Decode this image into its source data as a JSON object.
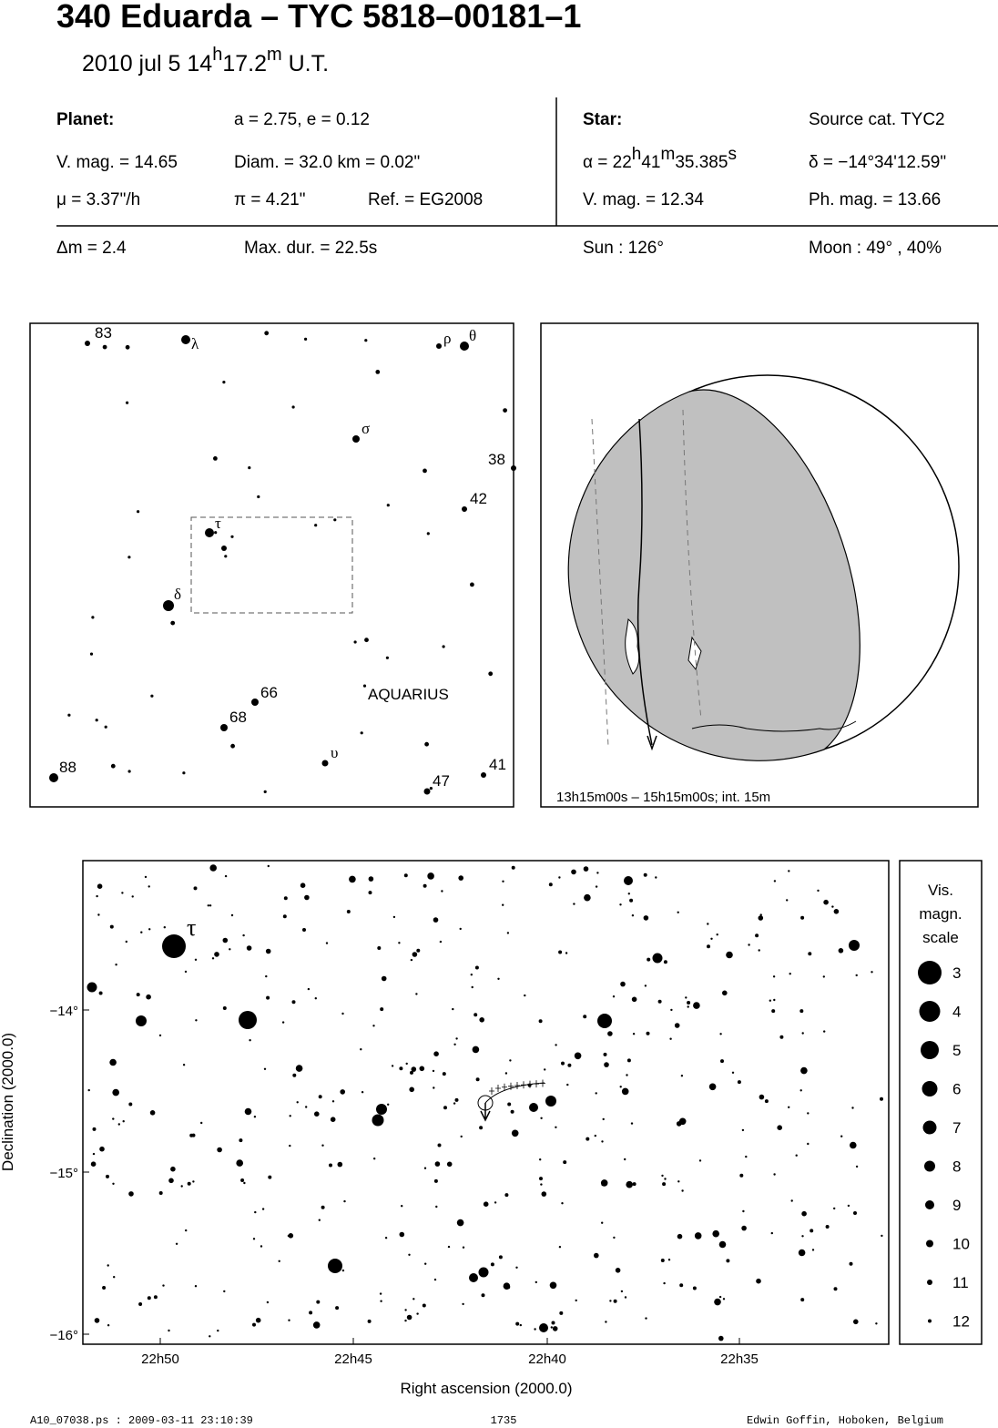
{
  "header": {
    "title": "340 Eduarda  –  TYC 5818–00181–1",
    "date": {
      "day": "2010 jul  5  14",
      "h": "h",
      "min": "17.2",
      "m": "m",
      "tail": " U.T."
    }
  },
  "info": {
    "planet_heading": "Planet:",
    "orbit": "a = 2.75, e = 0.12",
    "vmag": "V. mag. = 14.65",
    "diam": "Diam. = 32.0 km = 0.02\"",
    "mu": "μ =  3.37\"/h",
    "pi": "π =  4.21\"",
    "ref": "Ref. = EG2008",
    "star_heading": "Star:",
    "source": "Source cat.  TYC2",
    "alpha": {
      "a": "α = 22",
      "h": "h",
      "b": "41",
      "m": "m",
      "c": "35.385",
      "s": "s"
    },
    "delta": "δ = −14°34'12.59\"",
    "star_vmag": "V. mag. = 12.34",
    "phmag": "Ph. mag. = 13.66",
    "dm": "Δm = 2.4",
    "maxdur": "Max. dur. = 22.5s",
    "sun": "Sun : 126°",
    "moon": "Moon :  49° , 40%"
  },
  "finder": {
    "labels": [
      "83",
      "λ",
      "ρ",
      "θ",
      "σ",
      "38",
      "42",
      "τ",
      "δ",
      "66",
      "68",
      "AQUARIUS",
      "88",
      "υ",
      "41",
      "47"
    ]
  },
  "globe": {
    "caption": "13h15m00s – 15h15m00s; int. 15m"
  },
  "chart": {
    "y_title": "Declination (2000.0)",
    "x_title": "Right ascension (2000.0)",
    "yticks": [
      "−14°",
      "−15°",
      "−16°"
    ],
    "xticks": [
      "22h50",
      "22h45",
      "22h40",
      "22h35"
    ],
    "tau": "τ",
    "legend_title": [
      "Vis.",
      "magn.",
      "scale"
    ],
    "legend_mags": [
      3,
      4,
      5,
      6,
      7,
      8,
      9,
      10,
      11,
      12
    ]
  },
  "footer": {
    "left": "A10_07038.ps : 2009-03-11 23:10:39",
    "center": "1735",
    "right": "Edwin Goffin, Hoboken, Belgium"
  }
}
